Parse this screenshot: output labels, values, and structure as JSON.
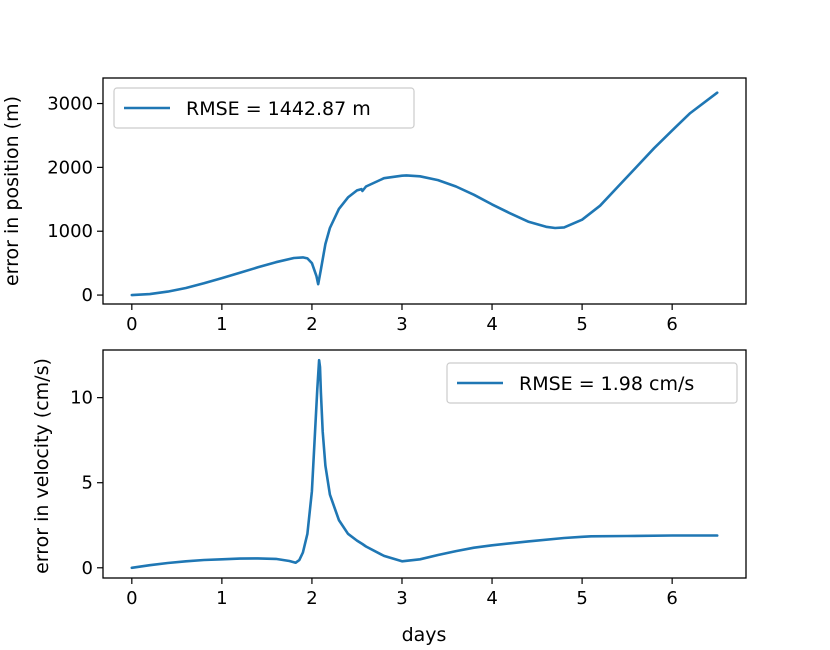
{
  "chart_data": [
    {
      "type": "line",
      "ylabel": "error in position (m)",
      "xlabel": "",
      "xlim": [
        -0.32,
        6.82
      ],
      "ylim": [
        -140,
        3400
      ],
      "xticks": [
        0,
        1,
        2,
        3,
        4,
        5,
        6
      ],
      "yticks": [
        0,
        1000,
        2000,
        3000
      ],
      "legend": {
        "location": "top-left",
        "entries": [
          "RMSE = 1442.87 m"
        ]
      },
      "series": [
        {
          "name": "RMSE = 1442.87 m",
          "x": [
            0,
            0.2,
            0.4,
            0.6,
            0.8,
            1.0,
            1.2,
            1.4,
            1.6,
            1.8,
            1.9,
            1.95,
            2.0,
            2.05,
            2.07,
            2.1,
            2.15,
            2.2,
            2.3,
            2.4,
            2.5,
            2.55,
            2.56,
            2.6,
            2.8,
            3.0,
            3.05,
            3.2,
            3.4,
            3.6,
            3.8,
            4.0,
            4.2,
            4.4,
            4.6,
            4.7,
            4.8,
            5.0,
            5.2,
            5.4,
            5.6,
            5.8,
            6.0,
            6.2,
            6.5
          ],
          "y": [
            0,
            15,
            55,
            110,
            185,
            265,
            350,
            435,
            515,
            580,
            590,
            575,
            500,
            300,
            170,
            400,
            800,
            1050,
            1350,
            1530,
            1640,
            1660,
            1630,
            1700,
            1830,
            1870,
            1875,
            1860,
            1800,
            1700,
            1570,
            1420,
            1280,
            1150,
            1070,
            1050,
            1060,
            1180,
            1400,
            1700,
            2000,
            2300,
            2580,
            2850,
            3170
          ]
        }
      ]
    },
    {
      "type": "line",
      "ylabel": "error in velocity (cm/s)",
      "xlabel": "days",
      "xlim": [
        -0.32,
        6.82
      ],
      "ylim": [
        -0.6,
        12.8
      ],
      "xticks": [
        0,
        1,
        2,
        3,
        4,
        5,
        6
      ],
      "yticks": [
        0,
        5,
        10
      ],
      "legend": {
        "location": "top-right",
        "entries": [
          "RMSE = 1.98 cm/s"
        ]
      },
      "series": [
        {
          "name": "RMSE = 1.98 cm/s",
          "x": [
            0,
            0.2,
            0.4,
            0.6,
            0.8,
            1.0,
            1.2,
            1.4,
            1.6,
            1.75,
            1.82,
            1.86,
            1.9,
            1.95,
            2.0,
            2.03,
            2.06,
            2.08,
            2.09,
            2.1,
            2.12,
            2.15,
            2.2,
            2.3,
            2.4,
            2.5,
            2.56,
            2.6,
            2.8,
            3.0,
            3.2,
            3.4,
            3.6,
            3.8,
            4.0,
            4.4,
            4.8,
            5.0,
            5.1,
            5.5,
            6.0,
            6.5
          ],
          "y": [
            0,
            0.15,
            0.28,
            0.38,
            0.46,
            0.5,
            0.54,
            0.55,
            0.52,
            0.4,
            0.3,
            0.45,
            0.9,
            2.0,
            4.5,
            7.5,
            10.5,
            12.2,
            11.8,
            10.3,
            8.0,
            6.0,
            4.3,
            2.8,
            2.0,
            1.6,
            1.4,
            1.25,
            0.7,
            0.38,
            0.5,
            0.75,
            0.98,
            1.18,
            1.32,
            1.55,
            1.75,
            1.82,
            1.85,
            1.87,
            1.9,
            1.9
          ]
        }
      ]
    }
  ]
}
